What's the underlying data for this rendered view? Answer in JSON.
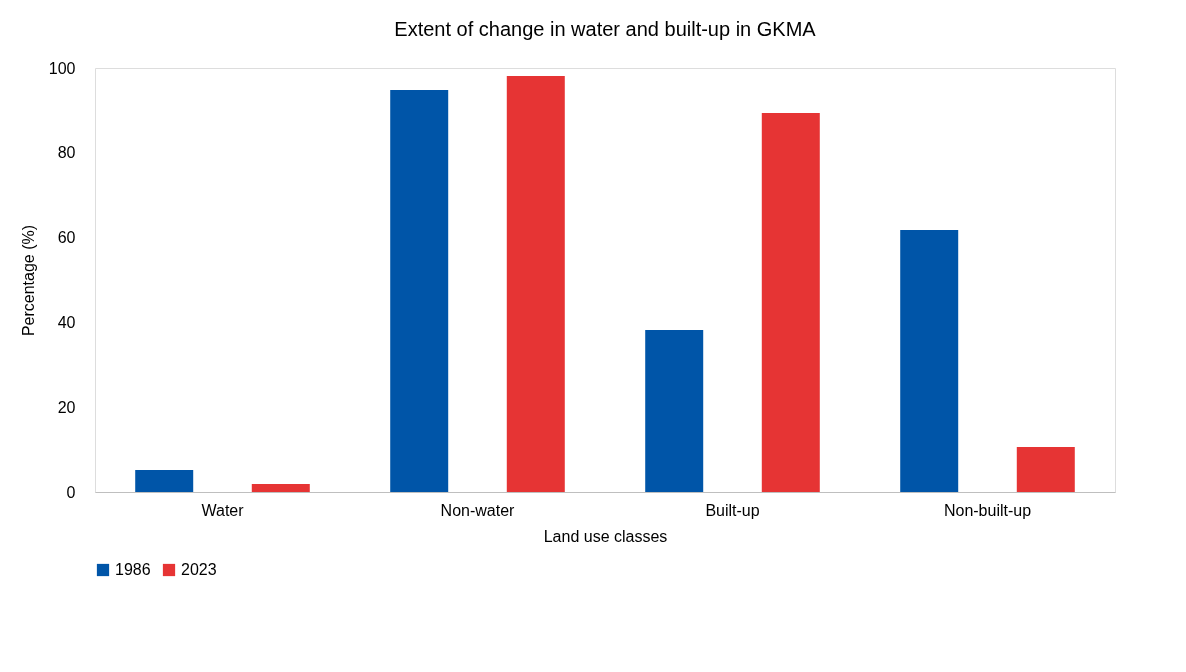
{
  "chart_data": {
    "type": "bar",
    "title": "Extent of change in water and built-up in GKMA",
    "xlabel": "Land use classes",
    "ylabel": "Percentage (%)",
    "categories": [
      "Water",
      "Non-water",
      "Built-up",
      "Non-built-up"
    ],
    "series": [
      {
        "name": "1986",
        "color": "#0055a8",
        "values": [
          5.2,
          94.8,
          38.2,
          61.8
        ]
      },
      {
        "name": "2023",
        "color": "#e63434",
        "values": [
          1.9,
          98.1,
          89.4,
          10.6
        ]
      }
    ],
    "ylim": [
      0,
      100
    ],
    "yticks": [
      0,
      20,
      40,
      60,
      80,
      100
    ],
    "grid": false,
    "legend": "bottom"
  }
}
